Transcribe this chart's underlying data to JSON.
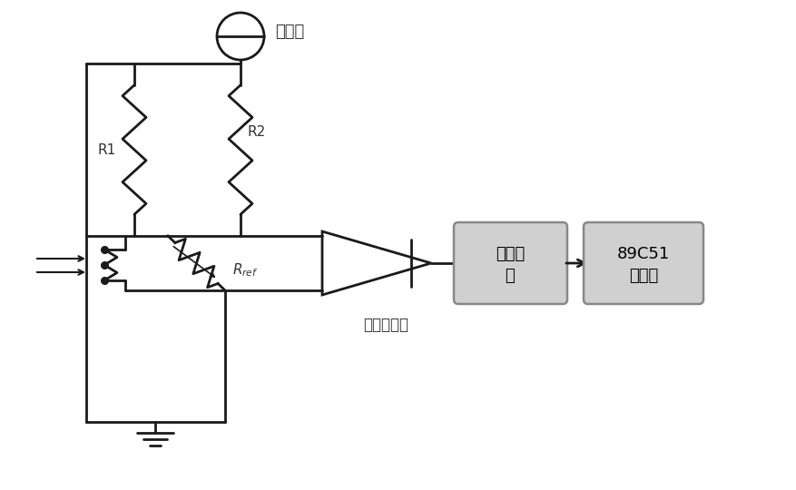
{
  "bg_color": "#ffffff",
  "line_color": "#1a1a1a",
  "box_fill_color": "#d0d0d0",
  "box_border_color": "#888888",
  "text_color": "#333333",
  "label_vs": "恒压源",
  "label_R1": "R1",
  "label_R2": "R2",
  "label_Rref": "$R_{ref}$",
  "label_amp": "仪表放大器",
  "label_adc_line1": "模数转",
  "label_adc_line2": "换",
  "label_mcu_line1": "89C51",
  "label_mcu_line2": "单片机"
}
